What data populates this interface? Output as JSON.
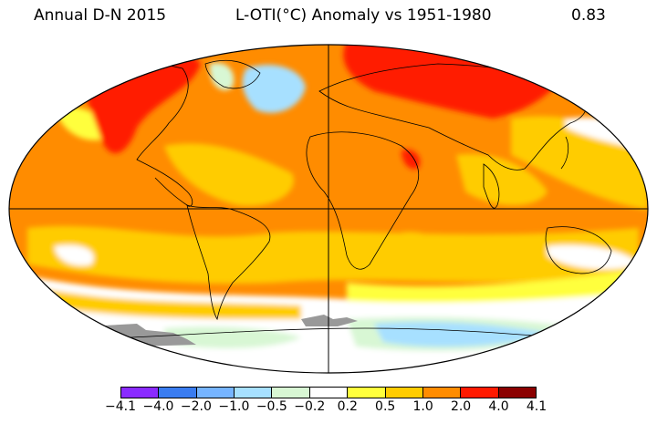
{
  "header": {
    "left": "Annual D-N 2015",
    "center": "L-OTI(°C) Anomaly vs 1951-1980",
    "global_mean": "0.83"
  },
  "legend": {
    "ticks": [
      "−4.1",
      "−4.0",
      "−2.0",
      "−1.0",
      "−0.5",
      "−0.2",
      "0.2",
      "0.5",
      "1.0",
      "2.0",
      "4.0",
      "4.1"
    ],
    "colors": [
      "#8a2bff",
      "#3a7cf0",
      "#76b4ff",
      "#a7e0ff",
      "#d8f7d4",
      "#ffffff",
      "#ffff3c",
      "#ffcc00",
      "#ff8c00",
      "#ff1a00",
      "#8b0000"
    ]
  }
}
